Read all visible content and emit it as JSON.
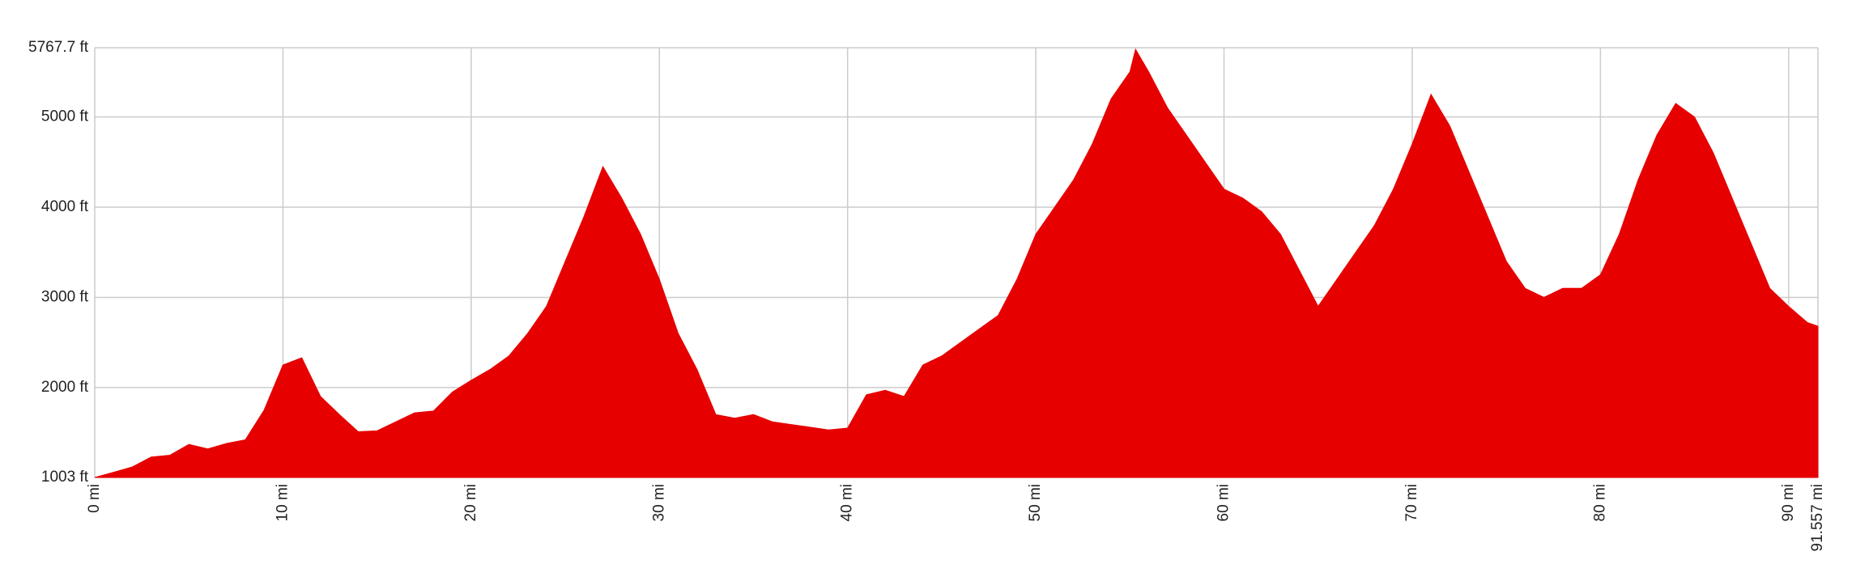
{
  "chart_data": {
    "type": "area",
    "color": "#e60000",
    "grid": true,
    "x": [
      0,
      1,
      2,
      3,
      4,
      5,
      6,
      7,
      8,
      9,
      10,
      11,
      12,
      13,
      14,
      15,
      16,
      17,
      18,
      19,
      20,
      21,
      22,
      23,
      24,
      25,
      26,
      27,
      28,
      29,
      30,
      31,
      32,
      33,
      34,
      35,
      36,
      37,
      38,
      39,
      40,
      41,
      42,
      43,
      44,
      45,
      46,
      47,
      48,
      49,
      50,
      51,
      52,
      53,
      54,
      55,
      55.3,
      56,
      57,
      58,
      59,
      60,
      61,
      62,
      63,
      64,
      65,
      66,
      67,
      68,
      69,
      70,
      71,
      72,
      73,
      74,
      75,
      76,
      77,
      78,
      79,
      80,
      81,
      82,
      83,
      84,
      85,
      86,
      87,
      88,
      89,
      90,
      91,
      91.557
    ],
    "values": [
      1003,
      1060,
      1120,
      1230,
      1250,
      1370,
      1320,
      1380,
      1420,
      1750,
      2250,
      2330,
      1900,
      1700,
      1510,
      1520,
      1620,
      1720,
      1740,
      1950,
      2080,
      2200,
      2350,
      2600,
      2900,
      3400,
      3900,
      4450,
      4100,
      3700,
      3200,
      2600,
      2200,
      1700,
      1660,
      1700,
      1620,
      1590,
      1560,
      1530,
      1550,
      1920,
      1970,
      1900,
      2250,
      2350,
      2500,
      2650,
      2800,
      3200,
      3700,
      4000,
      4300,
      4700,
      5200,
      5500,
      5750,
      5500,
      5100,
      4800,
      4500,
      4200,
      4100,
      3950,
      3700,
      3300,
      2900,
      3200,
      3500,
      3800,
      4200,
      4700,
      5250,
      4900,
      4400,
      3900,
      3400,
      3100,
      3000,
      3100,
      3100,
      3250,
      3700,
      4300,
      4800,
      5150,
      5000,
      4600,
      4100,
      3600,
      3100,
      2900,
      2720,
      2680
    ],
    "xlim": [
      0,
      91.557
    ],
    "xticks": [
      {
        "value": 0,
        "label": "0 mi"
      },
      {
        "value": 10,
        "label": "10 mi"
      },
      {
        "value": 20,
        "label": "20 mi"
      },
      {
        "value": 30,
        "label": "30 mi"
      },
      {
        "value": 40,
        "label": "40 mi"
      },
      {
        "value": 50,
        "label": "50 mi"
      },
      {
        "value": 60,
        "label": "60 mi"
      },
      {
        "value": 70,
        "label": "70 mi"
      },
      {
        "value": 80,
        "label": "80 mi"
      },
      {
        "value": 90,
        "label": "90 mi"
      },
      {
        "value": 91.557,
        "label": "91.557 mi"
      }
    ],
    "ylim": [
      1003,
      5767.7
    ],
    "yticks": [
      {
        "value": 1003,
        "label": "1003 ft"
      },
      {
        "value": 2000,
        "label": "2000 ft"
      },
      {
        "value": 3000,
        "label": "3000 ft"
      },
      {
        "value": 4000,
        "label": "4000 ft"
      },
      {
        "value": 5000,
        "label": "5000 ft"
      },
      {
        "value": 5767.7,
        "label": "5767.7 ft"
      }
    ]
  }
}
